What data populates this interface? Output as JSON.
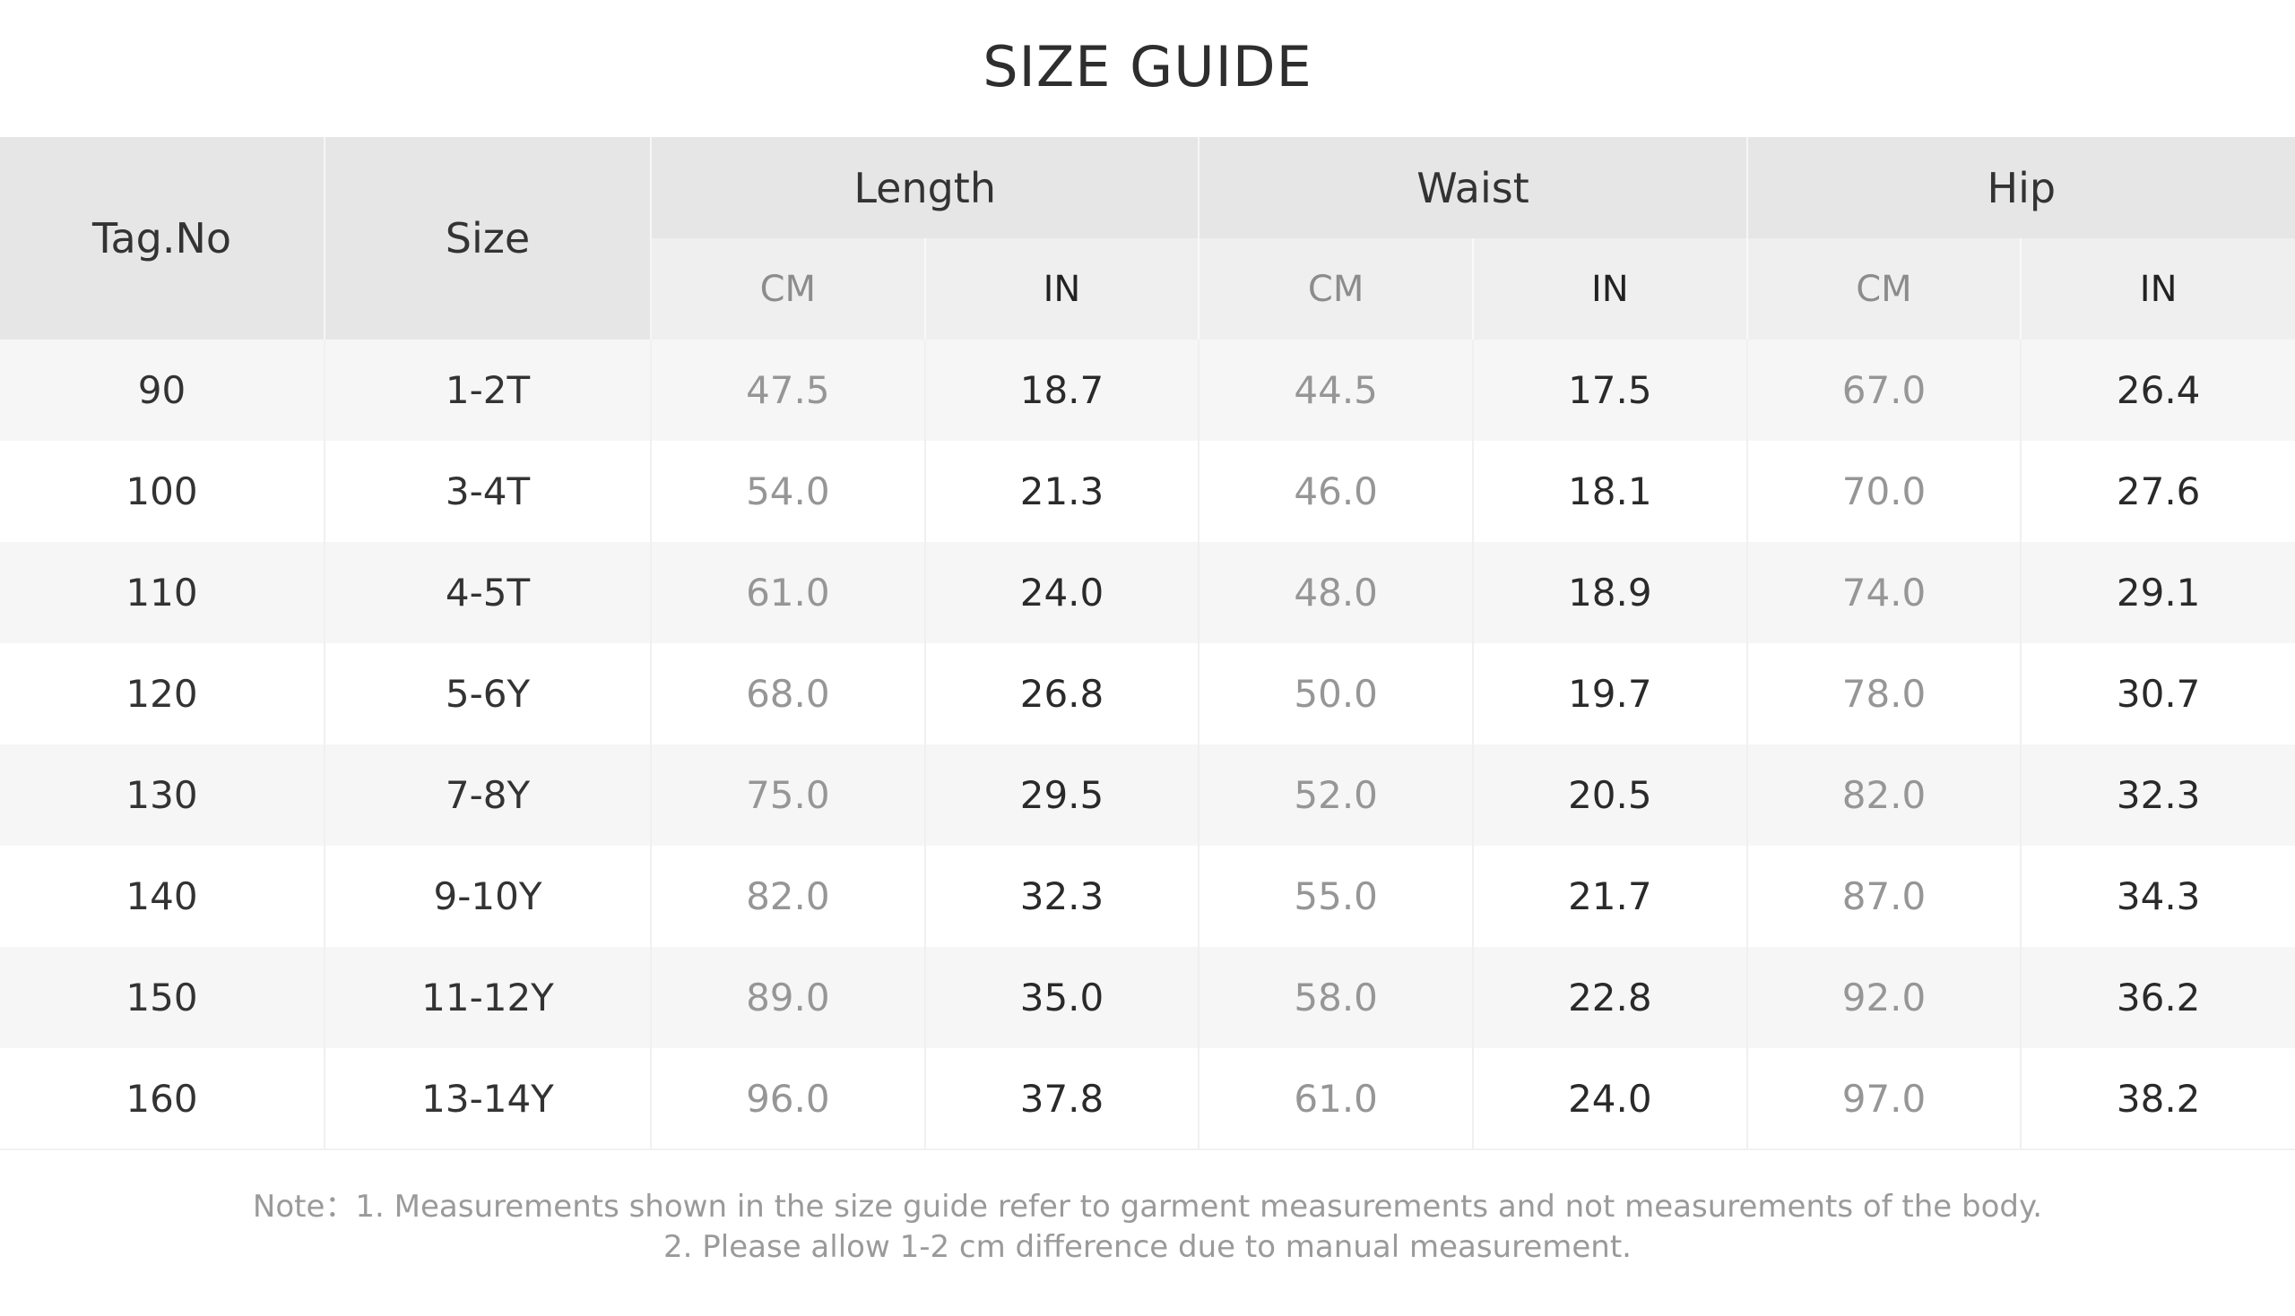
{
  "title": "SIZE GUIDE",
  "table": {
    "headers": {
      "tag": "Tag.No",
      "size": "Size",
      "groups": [
        {
          "label": "Length",
          "units": [
            "CM",
            "IN"
          ]
        },
        {
          "label": "Waist",
          "units": [
            "CM",
            "IN"
          ]
        },
        {
          "label": "Hip",
          "units": [
            "CM",
            "IN"
          ]
        }
      ]
    },
    "rows": [
      {
        "tag": "90",
        "size": "1-2T",
        "values": [
          "47.5",
          "18.7",
          "44.5",
          "17.5",
          "67.0",
          "26.4"
        ]
      },
      {
        "tag": "100",
        "size": "3-4T",
        "values": [
          "54.0",
          "21.3",
          "46.0",
          "18.1",
          "70.0",
          "27.6"
        ]
      },
      {
        "tag": "110",
        "size": "4-5T",
        "values": [
          "61.0",
          "24.0",
          "48.0",
          "18.9",
          "74.0",
          "29.1"
        ]
      },
      {
        "tag": "120",
        "size": "5-6Y",
        "values": [
          "68.0",
          "26.8",
          "50.0",
          "19.7",
          "78.0",
          "30.7"
        ]
      },
      {
        "tag": "130",
        "size": "7-8Y",
        "values": [
          "75.0",
          "29.5",
          "52.0",
          "20.5",
          "82.0",
          "32.3"
        ]
      },
      {
        "tag": "140",
        "size": "9-10Y",
        "values": [
          "82.0",
          "32.3",
          "55.0",
          "21.7",
          "87.0",
          "34.3"
        ]
      },
      {
        "tag": "150",
        "size": "11-12Y",
        "values": [
          "89.0",
          "35.0",
          "58.0",
          "22.8",
          "92.0",
          "36.2"
        ]
      },
      {
        "tag": "160",
        "size": "13-14Y",
        "values": [
          "96.0",
          "37.8",
          "61.0",
          "24.0",
          "97.0",
          "38.2"
        ]
      }
    ]
  },
  "note": {
    "line1": "Note：1. Measurements shown in the size guide refer to garment measurements and not measurements of the body.",
    "line2": "2. Please allow 1-2 cm difference due to manual measurement."
  }
}
